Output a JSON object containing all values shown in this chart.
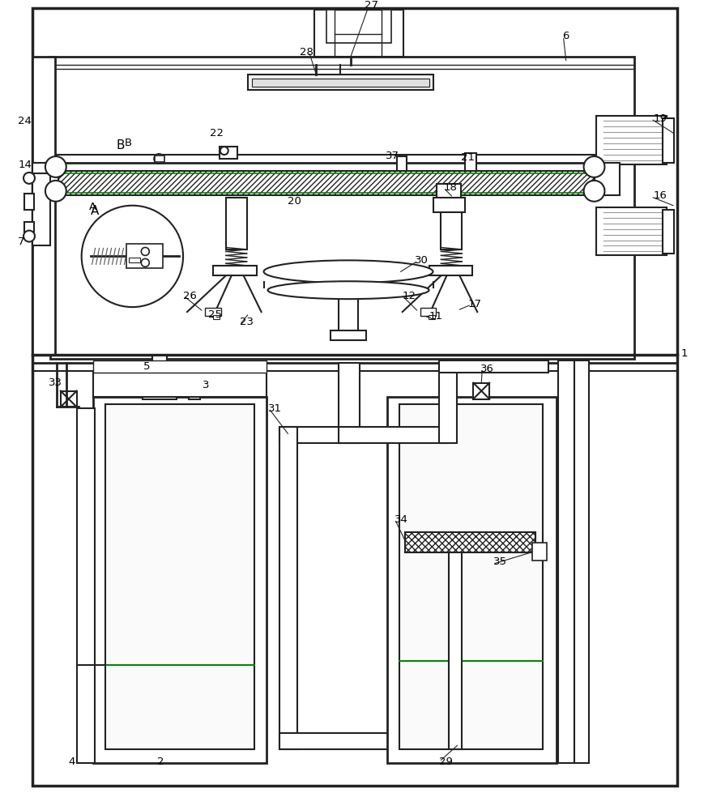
{
  "bg_color": "#ffffff",
  "line_color": "#222222",
  "green_color": "#008800",
  "gray_color": "#999999",
  "figsize": [
    8.74,
    10.0
  ],
  "dpi": 100,
  "labels": [
    [
      450,
      998,
      "27"
    ],
    [
      370,
      940,
      "28"
    ],
    [
      695,
      960,
      "6"
    ],
    [
      20,
      855,
      "24"
    ],
    [
      20,
      800,
      "14"
    ],
    [
      20,
      705,
      "7"
    ],
    [
      152,
      828,
      "B"
    ],
    [
      108,
      748,
      "A"
    ],
    [
      258,
      840,
      "22"
    ],
    [
      476,
      812,
      "37"
    ],
    [
      570,
      810,
      "21"
    ],
    [
      355,
      755,
      "20"
    ],
    [
      808,
      858,
      "19"
    ],
    [
      808,
      762,
      "16"
    ],
    [
      512,
      682,
      "30"
    ],
    [
      225,
      638,
      "26"
    ],
    [
      256,
      615,
      "25"
    ],
    [
      295,
      606,
      "23"
    ],
    [
      497,
      638,
      "12"
    ],
    [
      530,
      613,
      "11"
    ],
    [
      578,
      628,
      "17"
    ],
    [
      548,
      772,
      "18"
    ],
    [
      843,
      566,
      "1"
    ],
    [
      58,
      530,
      "33"
    ],
    [
      176,
      550,
      "5"
    ],
    [
      249,
      527,
      "3"
    ],
    [
      83,
      60,
      "4"
    ],
    [
      193,
      60,
      "2"
    ],
    [
      330,
      498,
      "31"
    ],
    [
      543,
      60,
      "29"
    ],
    [
      487,
      360,
      "34"
    ],
    [
      610,
      308,
      "35"
    ],
    [
      594,
      547,
      "36"
    ]
  ]
}
